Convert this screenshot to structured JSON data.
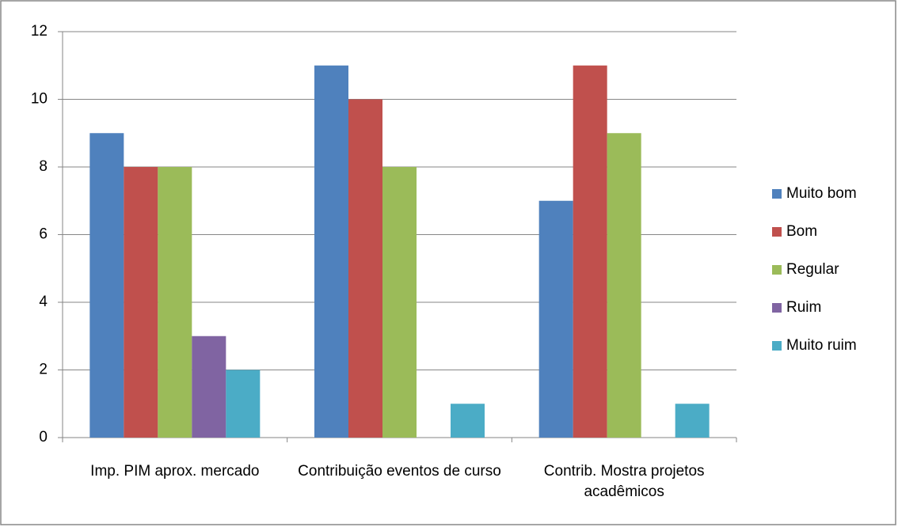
{
  "chart_data": {
    "type": "bar",
    "categories": [
      "Imp. PIM aprox. mercado",
      "Contribuição eventos de curso",
      "Contrib. Mostra projetos acadêmicos"
    ],
    "series": [
      {
        "name": "Muito bom",
        "color": "#4f81bd",
        "values": [
          9,
          11,
          7
        ]
      },
      {
        "name": "Bom",
        "color": "#c0504d",
        "values": [
          8,
          10,
          11
        ]
      },
      {
        "name": "Regular",
        "color": "#9bbb59",
        "values": [
          8,
          8,
          9
        ]
      },
      {
        "name": "Ruim",
        "color": "#8064a2",
        "values": [
          3,
          0,
          0
        ]
      },
      {
        "name": "Muito ruim",
        "color": "#4bacc6",
        "values": [
          2,
          1,
          1
        ]
      }
    ],
    "ylim": [
      0,
      12
    ],
    "yticks": [
      0,
      2,
      4,
      6,
      8,
      10,
      12
    ],
    "grid": true,
    "legend": "right"
  }
}
